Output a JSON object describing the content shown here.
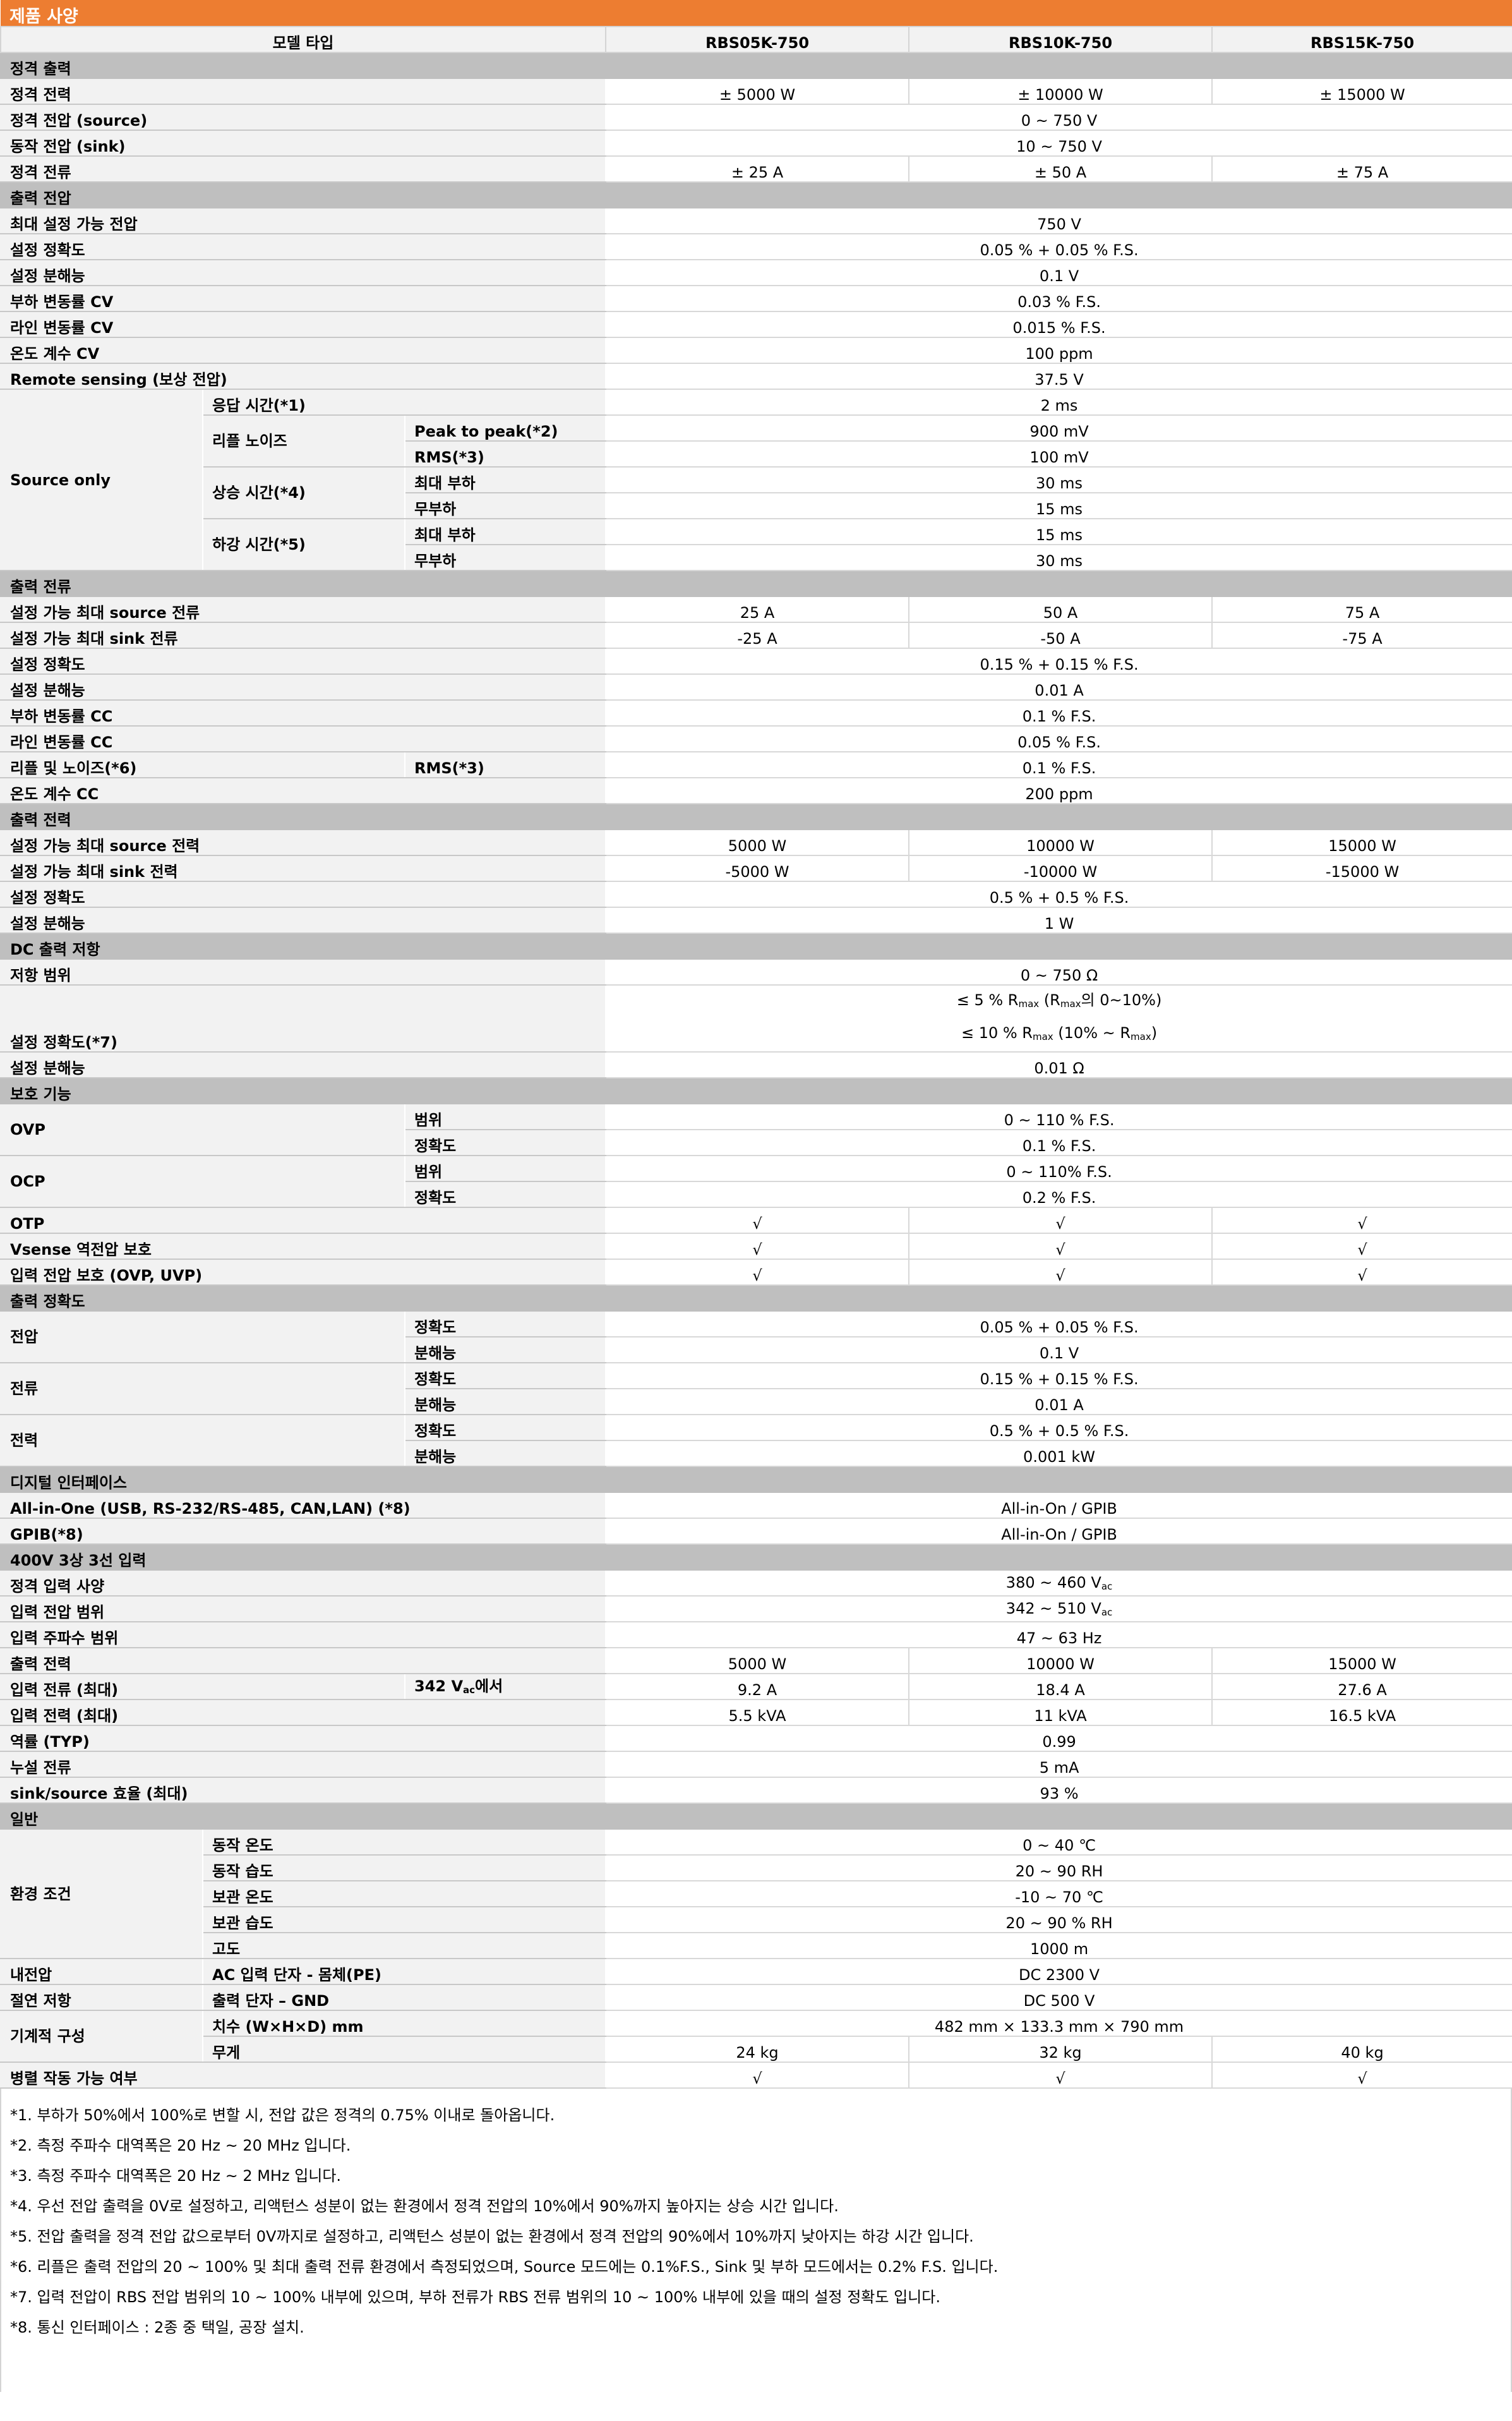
{
  "title": "제품 사양",
  "colors": {
    "title_bar": "#ED7D31",
    "section": "#BFBFBF",
    "label_bg": "#F2F2F2"
  },
  "header": {
    "label": "모델 타입",
    "models": [
      "RBS05K-750",
      "RBS10K-750",
      "RBS15K-750"
    ]
  },
  "rows": [
    {
      "section": "정격 출력"
    },
    {
      "l": [
        [
          "정격 전력",
          3,
          1
        ]
      ],
      "v": [
        "± 5000 W",
        "± 10000 W",
        "± 15000 W"
      ]
    },
    {
      "l": [
        [
          "정격 전압 (source)",
          3,
          1
        ]
      ],
      "v": [
        "0 ~ 750 V"
      ]
    },
    {
      "l": [
        [
          "동작 전압 (sink)",
          3,
          1
        ]
      ],
      "v": [
        "10 ~ 750 V"
      ]
    },
    {
      "l": [
        [
          "정격 전류",
          3,
          1
        ]
      ],
      "v": [
        "± 25 A",
        "± 50 A",
        "± 75 A"
      ]
    },
    {
      "section": "출력 전압"
    },
    {
      "l": [
        [
          "최대 설정 가능 전압",
          3,
          1
        ]
      ],
      "v": [
        "750 V"
      ]
    },
    {
      "l": [
        [
          "설정 정확도",
          3,
          1
        ]
      ],
      "v": [
        "0.05 % + 0.05 % F.S."
      ]
    },
    {
      "l": [
        [
          "설정 분해능",
          3,
          1
        ]
      ],
      "v": [
        "0.1 V"
      ]
    },
    {
      "l": [
        [
          "부하 변동률 CV",
          3,
          1
        ]
      ],
      "v": [
        "0.03 % F.S."
      ]
    },
    {
      "l": [
        [
          "라인 변동률 CV",
          3,
          1
        ]
      ],
      "v": [
        "0.015 % F.S."
      ]
    },
    {
      "l": [
        [
          "온도 계수 CV",
          3,
          1
        ]
      ],
      "v": [
        "100 ppm"
      ]
    },
    {
      "l": [
        [
          "Remote sensing (보상 전압)",
          3,
          1
        ]
      ],
      "v": [
        "37.5 V"
      ]
    },
    {
      "l": [
        [
          "Source only",
          1,
          7
        ],
        [
          "응답 시간(*1)",
          2,
          1
        ]
      ],
      "v": [
        "2 ms"
      ]
    },
    {
      "l": [
        [
          "리플 노이즈",
          1,
          2
        ],
        [
          "Peak to peak(*2)",
          1,
          1
        ]
      ],
      "v": [
        "900 mV"
      ]
    },
    {
      "l": [
        [
          "RMS(*3)",
          1,
          1
        ]
      ],
      "v": [
        "100 mV"
      ]
    },
    {
      "l": [
        [
          "상승 시간(*4)",
          1,
          2
        ],
        [
          "최대 부하",
          1,
          1
        ]
      ],
      "v": [
        "30 ms"
      ]
    },
    {
      "l": [
        [
          "무부하",
          1,
          1
        ]
      ],
      "v": [
        "15 ms"
      ]
    },
    {
      "l": [
        [
          "하강 시간(*5)",
          1,
          2
        ],
        [
          "최대 부하",
          1,
          1
        ]
      ],
      "v": [
        "15 ms"
      ]
    },
    {
      "l": [
        [
          "무부하",
          1,
          1
        ]
      ],
      "v": [
        "30 ms"
      ]
    },
    {
      "section": "출력 전류"
    },
    {
      "l": [
        [
          "설정 가능 최대 source 전류",
          3,
          1
        ]
      ],
      "v": [
        "25 A",
        "50 A",
        "75 A"
      ]
    },
    {
      "l": [
        [
          "설정 가능 최대 sink 전류",
          3,
          1
        ]
      ],
      "v": [
        "-25 A",
        "-50 A",
        "-75 A"
      ]
    },
    {
      "l": [
        [
          "설정 정확도",
          3,
          1
        ]
      ],
      "v": [
        "0.15 % + 0.15 % F.S."
      ]
    },
    {
      "l": [
        [
          "설정 분해능",
          3,
          1
        ]
      ],
      "v": [
        "0.01 A"
      ]
    },
    {
      "l": [
        [
          "부하 변동률 CC",
          3,
          1
        ]
      ],
      "v": [
        "0.1 % F.S."
      ]
    },
    {
      "l": [
        [
          "라인 변동률 CC",
          3,
          1
        ]
      ],
      "v": [
        "0.05 % F.S."
      ]
    },
    {
      "l": [
        [
          "리플 및 노이즈(*6)",
          2,
          1
        ],
        [
          "RMS(*3)",
          1,
          1
        ]
      ],
      "v": [
        "0.1 % F.S."
      ]
    },
    {
      "l": [
        [
          "온도 계수 CC",
          3,
          1
        ]
      ],
      "v": [
        "200 ppm"
      ]
    },
    {
      "section": "출력 전력"
    },
    {
      "l": [
        [
          "설정 가능 최대 source 전력",
          3,
          1
        ]
      ],
      "v": [
        "5000 W",
        "10000 W",
        "15000 W"
      ]
    },
    {
      "l": [
        [
          "설정 가능 최대 sink 전력",
          3,
          1
        ]
      ],
      "v": [
        "-5000 W",
        "-10000 W",
        "-15000 W"
      ]
    },
    {
      "l": [
        [
          "설정 정확도",
          3,
          1
        ]
      ],
      "v": [
        "0.5 % + 0.5 % F.S."
      ]
    },
    {
      "l": [
        [
          "설정 분해능",
          3,
          1
        ]
      ],
      "v": [
        "1 W"
      ]
    },
    {
      "section": "DC 출력 저항"
    },
    {
      "l": [
        [
          "저항 범위",
          3,
          1
        ]
      ],
      "v": [
        "0 ~ 750 Ω"
      ]
    },
    {
      "l": [
        [
          "설정 정확도(*7)",
          3,
          1
        ]
      ],
      "v": [
        [
          [
            [
              "≤ 5 % R",
              ""
            ],
            [
              "",
              "max"
            ],
            [
              " (R",
              ""
            ],
            [
              "",
              "max"
            ],
            [
              "의 0~10%)",
              ""
            ]
          ],
          [
            [
              "≤ 10 % R",
              ""
            ],
            [
              "",
              "max"
            ],
            [
              " (10% ~ R",
              ""
            ],
            [
              "",
              "max"
            ],
            [
              ")",
              ""
            ]
          ]
        ]
      ]
    },
    {
      "l": [
        [
          "설정 분해능",
          3,
          1
        ]
      ],
      "v": [
        "0.01 Ω"
      ]
    },
    {
      "section": "보호 기능"
    },
    {
      "l": [
        [
          "OVP",
          2,
          2
        ],
        [
          "범위",
          1,
          1
        ]
      ],
      "v": [
        "0 ~ 110 % F.S."
      ]
    },
    {
      "l": [
        [
          "정확도",
          1,
          1
        ]
      ],
      "v": [
        "0.1 % F.S."
      ]
    },
    {
      "l": [
        [
          "OCP",
          2,
          2
        ],
        [
          "범위",
          1,
          1
        ]
      ],
      "v": [
        "0 ~ 110% F.S."
      ]
    },
    {
      "l": [
        [
          "정확도",
          1,
          1
        ]
      ],
      "v": [
        "0.2 % F.S."
      ]
    },
    {
      "l": [
        [
          "OTP",
          3,
          1
        ]
      ],
      "v": [
        "√",
        "√",
        "√"
      ]
    },
    {
      "l": [
        [
          "Vsense 역전압 보호",
          3,
          1
        ]
      ],
      "v": [
        "√",
        "√",
        "√"
      ]
    },
    {
      "l": [
        [
          "입력 전압 보호 (OVP, UVP)",
          3,
          1
        ]
      ],
      "v": [
        "√",
        "√",
        "√"
      ]
    },
    {
      "section": "출력 정확도"
    },
    {
      "l": [
        [
          "전압",
          2,
          2
        ],
        [
          "정확도",
          1,
          1
        ]
      ],
      "v": [
        "0.05 % + 0.05 % F.S."
      ]
    },
    {
      "l": [
        [
          "분해능",
          1,
          1
        ]
      ],
      "v": [
        "0.1 V"
      ]
    },
    {
      "l": [
        [
          "전류",
          2,
          2
        ],
        [
          "정확도",
          1,
          1
        ]
      ],
      "v": [
        "0.15 % + 0.15 % F.S."
      ]
    },
    {
      "l": [
        [
          "분해능",
          1,
          1
        ]
      ],
      "v": [
        "0.01 A"
      ]
    },
    {
      "l": [
        [
          "전력",
          2,
          2
        ],
        [
          "정확도",
          1,
          1
        ]
      ],
      "v": [
        "0.5 % + 0.5 % F.S."
      ]
    },
    {
      "l": [
        [
          "분해능",
          1,
          1
        ]
      ],
      "v": [
        "0.001 kW"
      ]
    },
    {
      "section": "디지털 인터페이스"
    },
    {
      "l": [
        [
          "All-in-One (USB, RS-232/RS-485, CAN,LAN) (*8)",
          3,
          1
        ]
      ],
      "v": [
        "All-in-On / GPIB"
      ]
    },
    {
      "l": [
        [
          "GPIB(*8)",
          3,
          1
        ]
      ],
      "v": [
        "All-in-On / GPIB"
      ]
    },
    {
      "section": "400V 3상 3선 입력"
    },
    {
      "l": [
        [
          "정격 입력 사양",
          3,
          1
        ]
      ],
      "v": [
        [
          [
            [
              "380 ~ 460 V",
              ""
            ],
            [
              "",
              "ac"
            ]
          ]
        ]
      ]
    },
    {
      "l": [
        [
          "입력 전압 범위",
          3,
          1
        ]
      ],
      "v": [
        [
          [
            [
              "342 ~ 510 V",
              ""
            ],
            [
              "",
              "ac"
            ]
          ]
        ]
      ]
    },
    {
      "l": [
        [
          "입력 주파수 범위",
          3,
          1
        ]
      ],
      "v": [
        "47 ~ 63 Hz"
      ]
    },
    {
      "l": [
        [
          "출력 전력",
          3,
          1
        ]
      ],
      "v": [
        "5000 W",
        "10000 W",
        "15000 W"
      ]
    },
    {
      "l": [
        [
          "입력 전류 (최대)",
          2,
          1
        ],
        [
          [
            [
              "342 V",
              ""
            ],
            [
              "",
              "ac"
            ],
            [
              "에서",
              ""
            ]
          ],
          1,
          1
        ]
      ],
      "v": [
        "9.2 A",
        "18.4 A",
        "27.6 A"
      ]
    },
    {
      "l": [
        [
          "입력 전력 (최대)",
          3,
          1
        ]
      ],
      "v": [
        "5.5 kVA",
        "11 kVA",
        "16.5 kVA"
      ]
    },
    {
      "l": [
        [
          "역률 (TYP)",
          3,
          1
        ]
      ],
      "v": [
        "0.99"
      ]
    },
    {
      "l": [
        [
          "누설 전류",
          3,
          1
        ]
      ],
      "v": [
        "5 mA"
      ]
    },
    {
      "l": [
        [
          "sink/source 효율 (최대)",
          3,
          1
        ]
      ],
      "v": [
        "93 %"
      ]
    },
    {
      "section": "일반"
    },
    {
      "l": [
        [
          "환경 조건",
          1,
          5
        ],
        [
          "동작 온도",
          2,
          1
        ]
      ],
      "v": [
        "0 ~ 40 ℃"
      ]
    },
    {
      "l": [
        [
          "동작 습도",
          2,
          1
        ]
      ],
      "v": [
        "20 ~ 90 RH"
      ]
    },
    {
      "l": [
        [
          "보관 온도",
          2,
          1
        ]
      ],
      "v": [
        "-10 ~ 70 ℃"
      ]
    },
    {
      "l": [
        [
          "보관 습도",
          2,
          1
        ]
      ],
      "v": [
        "20 ~ 90 % RH"
      ]
    },
    {
      "l": [
        [
          "고도",
          2,
          1
        ]
      ],
      "v": [
        "1000 m"
      ]
    },
    {
      "l": [
        [
          "내전압",
          1,
          1
        ],
        [
          "AC 입력 단자 - 몸체(PE)",
          2,
          1
        ]
      ],
      "v": [
        "DC 2300 V"
      ]
    },
    {
      "l": [
        [
          "절연 저항",
          1,
          1
        ],
        [
          "출력 단자 – GND",
          2,
          1
        ]
      ],
      "v": [
        "DC 500 V"
      ]
    },
    {
      "l": [
        [
          "기계적 구성",
          1,
          2
        ],
        [
          "치수 (W×H×D) mm",
          2,
          1
        ]
      ],
      "v": [
        "482 mm × 133.3 mm × 790 mm"
      ]
    },
    {
      "l": [
        [
          "무게",
          2,
          1
        ]
      ],
      "v": [
        "24 kg",
        "32 kg",
        "40 kg"
      ]
    },
    {
      "l": [
        [
          "병렬 작동 가능 여부",
          3,
          1
        ]
      ],
      "v": [
        "√",
        "√",
        "√"
      ]
    }
  ],
  "footnotes": [
    "*1. 부하가 50%에서 100%로 변할 시, 전압 값은 정격의 0.75% 이내로 돌아옵니다.",
    "*2. 측정 주파수 대역폭은 20 Hz ~ 20 MHz 입니다.",
    "*3. 측정 주파수 대역폭은 20 Hz ~ 2 MHz 입니다.",
    "*4. 우선 전압 출력을 0V로 설정하고, 리액턴스 성분이 없는 환경에서 정격 전압의 10%에서 90%까지 높아지는 상승 시간 입니다.",
    "*5. 전압 출력을 정격 전압 값으로부터 0V까지로 설정하고, 리액턴스 성분이 없는 환경에서 정격 전압의 90%에서 10%까지 낮아지는 하강 시간 입니다.",
    "*6. 리플은 출력 전압의 20 ~ 100% 및 최대 출력 전류 환경에서 측정되었으며, Source 모드에는 0.1%F.S., Sink 및 부하 모드에서는 0.2% F.S. 입니다.",
    "*7. 입력 전압이 RBS 전압 범위의 10 ~ 100% 내부에 있으며, 부하 전류가 RBS 전류 범위의 10 ~ 100% 내부에 있을 때의 설정 정확도 입니다.",
    "*8. 통신 인터페이스 : 2종 중 택일, 공장 설치."
  ]
}
